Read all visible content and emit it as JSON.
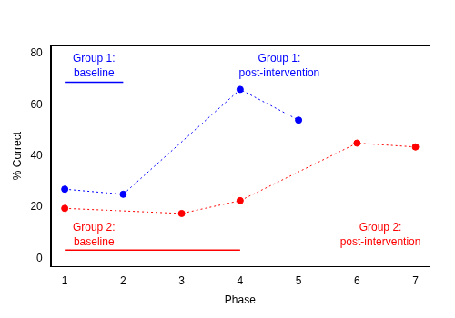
{
  "chart_data": {
    "type": "line",
    "x_label": "Phase",
    "y_label": "% Correct",
    "xlim": [
      0.76,
      7.24
    ],
    "xticks": [
      1,
      2,
      3,
      4,
      5,
      6,
      7
    ],
    "ylim": [
      -3.2,
      83.2
    ],
    "yticks": [
      0,
      20,
      40,
      60,
      80
    ],
    "grid": false,
    "series": [
      {
        "name": "Group 1",
        "color": "#0000ff",
        "marker": "circle",
        "line_style": "dotted",
        "x": [
          1,
          2,
          4,
          5
        ],
        "values": [
          27,
          25,
          66,
          54
        ]
      },
      {
        "name": "Group 2",
        "color": "#ff0000",
        "marker": "circle",
        "line_style": "dotted",
        "x": [
          1,
          3,
          4,
          6,
          7
        ],
        "values": [
          19.5,
          17.5,
          22.5,
          45,
          43.5
        ]
      }
    ],
    "annotations": [
      {
        "text": "Group 1:\nbaseline",
        "x": 1.5,
        "y": 75.2,
        "color": "#0000ff"
      },
      {
        "text": "Group 1:\npost-intervention",
        "x": 4.67,
        "y": 75.2,
        "color": "#0000ff"
      },
      {
        "text": "Group 2:\nbaseline",
        "x": 1.5,
        "y": 9.2,
        "color": "#ff0000"
      },
      {
        "text": "Group 2:\npost-intervention",
        "x": 6.4,
        "y": 9.2,
        "color": "#ff0000"
      }
    ],
    "spans": [
      {
        "x": [
          1,
          2
        ],
        "y": 68.8,
        "color": "#0000ff"
      },
      {
        "x": [
          1,
          4
        ],
        "y": 3.2,
        "color": "#ff0000"
      }
    ]
  }
}
